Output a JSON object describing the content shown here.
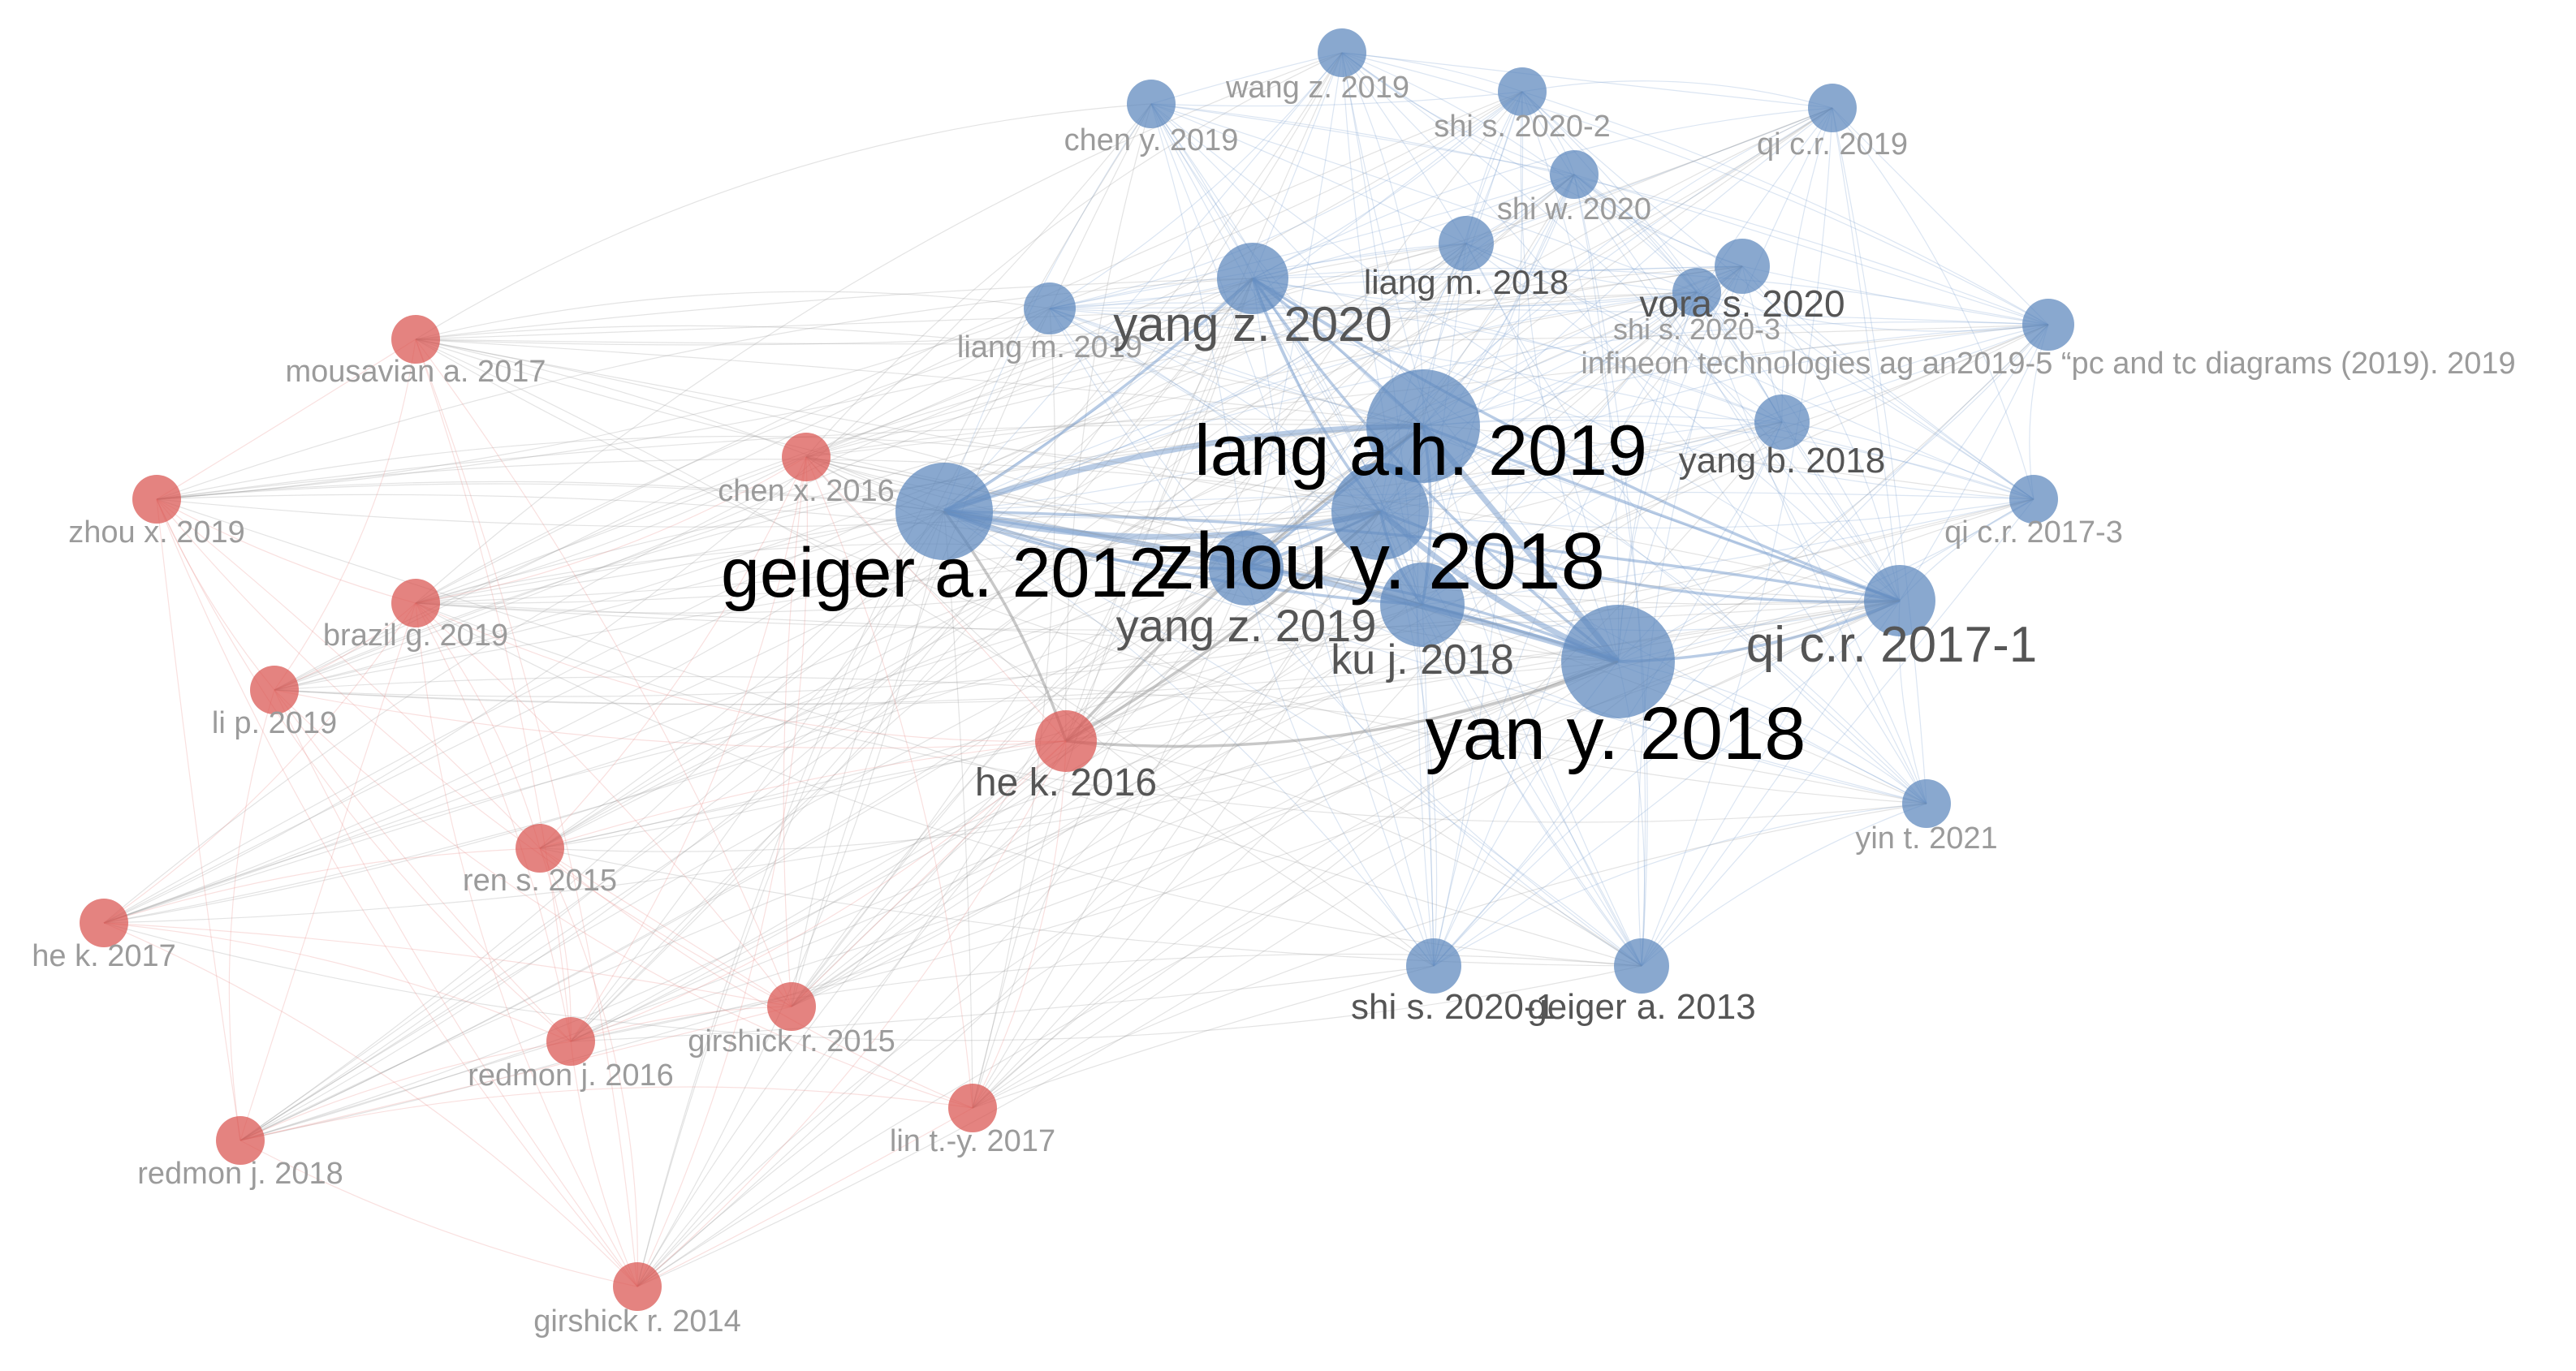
{
  "colors": {
    "cluster_red": "#d9534f",
    "cluster_blue": "#5b86bd",
    "edge_red": "#e8908c",
    "edge_blue": "#7fa3d0",
    "edge_gray": "#9a9a9a",
    "label_faint": "#9b9b9b",
    "label_mid": "#555555",
    "label_dark": "#000000"
  },
  "nodes": [
    {
      "id": "wang_z_2019",
      "label": "wang z. 2019",
      "cluster": "blue",
      "weight": 1
    },
    {
      "id": "chen_y_2019",
      "label": "chen y. 2019",
      "cluster": "blue",
      "weight": 1
    },
    {
      "id": "shi_s_2020_2",
      "label": "shi s. 2020-2",
      "cluster": "blue",
      "weight": 1
    },
    {
      "id": "qi_cr_2019",
      "label": "qi c.r. 2019",
      "cluster": "blue",
      "weight": 1
    },
    {
      "id": "shi_w_2020",
      "label": "shi w. 2020",
      "cluster": "blue",
      "weight": 1
    },
    {
      "id": "liang_m_2018",
      "label": "liang m. 2018",
      "cluster": "blue",
      "weight": 2
    },
    {
      "id": "vora_s_2020",
      "label": "vora s. 2020",
      "cluster": "blue",
      "weight": 2
    },
    {
      "id": "shi_s_2020_3",
      "label": "shi s. 2020-3",
      "cluster": "blue",
      "weight": 1
    },
    {
      "id": "infineon",
      "label": "infineon technologies ag an2019-5 “pc and tc diagrams (2019). 2019",
      "cluster": "blue",
      "weight": 1
    },
    {
      "id": "liang_m_2019",
      "label": "liang m. 2019",
      "cluster": "blue",
      "weight": 1
    },
    {
      "id": "yang_z_2020",
      "label": "yang z. 2020",
      "cluster": "blue",
      "weight": 4
    },
    {
      "id": "lang_ah_2019",
      "label": "lang a.h. 2019",
      "cluster": "blue",
      "weight": 5
    },
    {
      "id": "yang_b_2018",
      "label": "yang b. 2018",
      "cluster": "blue",
      "weight": 2
    },
    {
      "id": "qi_cr_2017_3",
      "label": "qi c.r. 2017-3",
      "cluster": "blue",
      "weight": 1
    },
    {
      "id": "geiger_a_2012",
      "label": "geiger a. 2012",
      "cluster": "blue",
      "weight": 5
    },
    {
      "id": "zhou_y_2018",
      "label": "zhou y. 2018",
      "cluster": "blue",
      "weight": 5
    },
    {
      "id": "yang_z_2019",
      "label": "yang z. 2019",
      "cluster": "blue",
      "weight": 3
    },
    {
      "id": "ku_j_2018",
      "label": "ku j. 2018",
      "cluster": "blue",
      "weight": 3
    },
    {
      "id": "qi_cr_2017_1",
      "label": "qi c.r. 2017-1",
      "cluster": "blue",
      "weight": 4
    },
    {
      "id": "yan_y_2018",
      "label": "yan y. 2018",
      "cluster": "blue",
      "weight": 5
    },
    {
      "id": "yin_t_2021",
      "label": "yin t. 2021",
      "cluster": "blue",
      "weight": 1
    },
    {
      "id": "shi_s_2020_1",
      "label": "shi s. 2020-1",
      "cluster": "blue",
      "weight": 2
    },
    {
      "id": "geiger_a_2013",
      "label": "geiger a. 2013",
      "cluster": "blue",
      "weight": 2
    },
    {
      "id": "mousavian_a_2017",
      "label": "mousavian a. 2017",
      "cluster": "red",
      "weight": 1
    },
    {
      "id": "zhou_x_2019",
      "label": "zhou x. 2019",
      "cluster": "red",
      "weight": 1
    },
    {
      "id": "chen_x_2016",
      "label": "chen x. 2016",
      "cluster": "red",
      "weight": 1
    },
    {
      "id": "brazil_g_2019",
      "label": "brazil g. 2019",
      "cluster": "red",
      "weight": 1
    },
    {
      "id": "li_p_2019",
      "label": "li p. 2019",
      "cluster": "red",
      "weight": 1
    },
    {
      "id": "he_k_2016",
      "label": "he k. 2016",
      "cluster": "red",
      "weight": 3
    },
    {
      "id": "ren_s_2015",
      "label": "ren s. 2015",
      "cluster": "red",
      "weight": 1
    },
    {
      "id": "he_k_2017",
      "label": "he k. 2017",
      "cluster": "red",
      "weight": 1
    },
    {
      "id": "girshick_r_2015",
      "label": "girshick r. 2015",
      "cluster": "red",
      "weight": 1
    },
    {
      "id": "redmon_j_2016",
      "label": "redmon j. 2016",
      "cluster": "red",
      "weight": 1
    },
    {
      "id": "lin_ty_2017",
      "label": "lin t.-y. 2017",
      "cluster": "red",
      "weight": 1
    },
    {
      "id": "redmon_j_2018",
      "label": "redmon j. 2018",
      "cluster": "red",
      "weight": 1
    },
    {
      "id": "girshick_r_2014",
      "label": "girshick r. 2014",
      "cluster": "red",
      "weight": 1
    }
  ]
}
